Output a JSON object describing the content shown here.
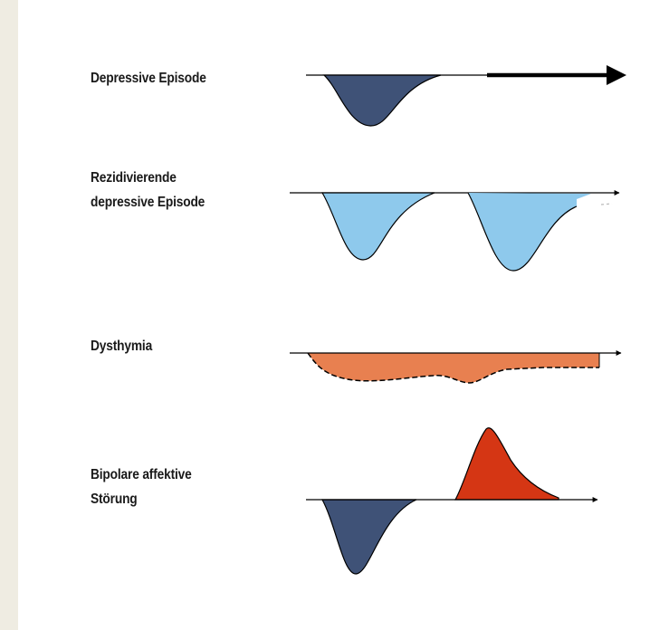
{
  "colors": {
    "background": "#efece2",
    "panel": "#ffffff",
    "line": "#000000",
    "depressive_fill": "#3f5277",
    "recurrent_fill": "#8ec9ec",
    "dysthymia_fill": "#e88050",
    "manic_fill": "#d53614"
  },
  "rows": [
    {
      "id": "depressive-episode",
      "label_lines": [
        "Depressive Episode"
      ]
    },
    {
      "id": "recurrent-depressive-episode",
      "label_lines": [
        "Rezidivierende",
        "depressive Episode"
      ]
    },
    {
      "id": "dysthymia",
      "label_lines": [
        "Dysthymia"
      ]
    },
    {
      "id": "bipolar-disorder",
      "label_lines": [
        "Bipolare affektive",
        "Störung"
      ]
    }
  ]
}
